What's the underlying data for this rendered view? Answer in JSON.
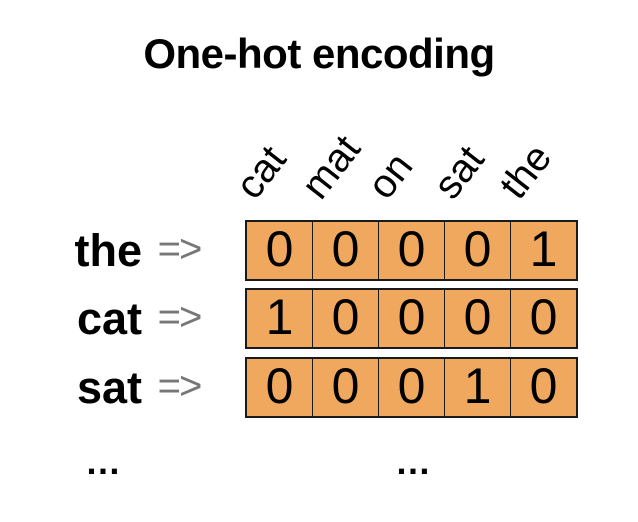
{
  "title": "One-hot encoding",
  "columns": [
    "cat",
    "mat",
    "on",
    "sat",
    "the"
  ],
  "rows": [
    {
      "label": "the",
      "arrow": "=>",
      "values": [
        "0",
        "0",
        "0",
        "0",
        "1"
      ]
    },
    {
      "label": "cat",
      "arrow": "=>",
      "values": [
        "1",
        "0",
        "0",
        "0",
        "0"
      ]
    },
    {
      "label": "sat",
      "arrow": "=>",
      "values": [
        "0",
        "0",
        "0",
        "1",
        "0"
      ]
    }
  ],
  "ellipsis_rows": "…",
  "ellipsis_vectors": "…",
  "colors": {
    "cell_fill": "#F0A85F",
    "border_color": "#1a1a1a",
    "arrow_color": "#777777",
    "text_color": "#000000"
  }
}
